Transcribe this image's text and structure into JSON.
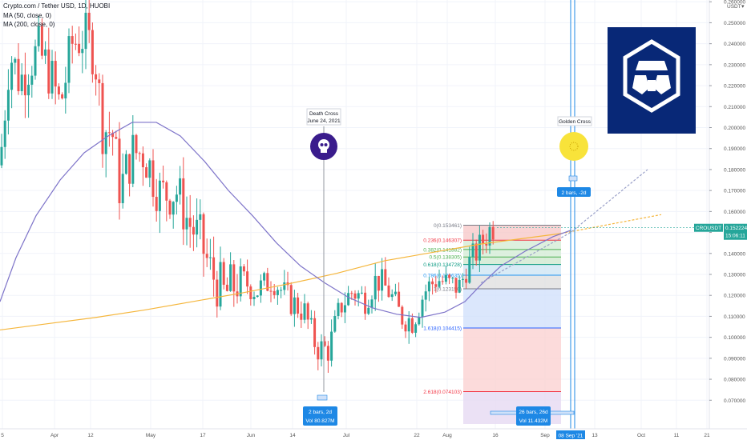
{
  "header": {
    "symbol_line": "Crypto.com / Tether USD, 1D, HUOBI",
    "indicators": [
      "MA (50, close, 0)",
      "MA (200, close, 0)"
    ]
  },
  "colors": {
    "up": "#26a69a",
    "down": "#ef5350",
    "ma50": "#7e74c9",
    "ma200": "#f5b63c",
    "accent": "#1e88e5",
    "logo_bg": "#082877"
  },
  "annotations": {
    "death_cross_title": "Death Cross",
    "death_cross_date": "June 24, 2021",
    "golden_cross_title": "Golden Cross",
    "range_left_bars": "2 bars, 2d",
    "range_left_vol": "Vol 80.827M",
    "range_top_bars": "2 bars, -2d",
    "range_bottom_bars": "26 bars, 26d",
    "range_bottom_vol": "Vol 11.432M"
  },
  "price_label": {
    "symbol": "CROUSDT",
    "price": "0.152224",
    "timer": "15:06:11"
  },
  "chart_data": {
    "type": "candlestick",
    "y_axis_unit": "USDT",
    "ylim": [
      0.064,
      0.27
    ],
    "y_ticks": [
      "0.260000",
      "0.250000",
      "0.240000",
      "0.230000",
      "0.220000",
      "0.210000",
      "0.200000",
      "0.190000",
      "0.180000",
      "0.170000",
      "0.160000",
      "0.150000",
      "0.140000",
      "0.130000",
      "0.120000",
      "0.110000",
      "0.100000",
      "0.090000",
      "0.080000",
      "0.070000"
    ],
    "x_labels": [
      "5",
      "Apr",
      "12",
      "May",
      "17",
      "Jun",
      "14",
      "Jul",
      "22",
      "Aug",
      "16",
      "Sep",
      "08 Sep '21",
      "13",
      "Oct",
      "11",
      "21"
    ],
    "ma50_label": "MA (50, close, 0)",
    "ma200_label": "MA (200, close, 0)",
    "fibonacci": [
      {
        "label": "0(0.153461)",
        "value": 0.153461,
        "color": "#787b86"
      },
      {
        "label": "0.236(0.146307)",
        "value": 0.146307,
        "color": "#f23645"
      },
      {
        "label": "0.382(0.141882)",
        "value": 0.141882,
        "color": "#4caf50"
      },
      {
        "label": "0.5(0.138305)",
        "value": 0.138305,
        "color": "#4caf50"
      },
      {
        "label": "0.618(0.134728)",
        "value": 0.134728,
        "color": "#089981"
      },
      {
        "label": "0.786(0.129635)",
        "value": 0.129635,
        "color": "#2196f3"
      },
      {
        "label": "1(0.123150)",
        "value": 0.12315,
        "color": "#787b86"
      },
      {
        "label": "1.618(0.104415)",
        "value": 0.104415,
        "color": "#2962ff"
      },
      {
        "label": "2.618(0.074103)",
        "value": 0.074103,
        "color": "#f23645"
      }
    ]
  }
}
